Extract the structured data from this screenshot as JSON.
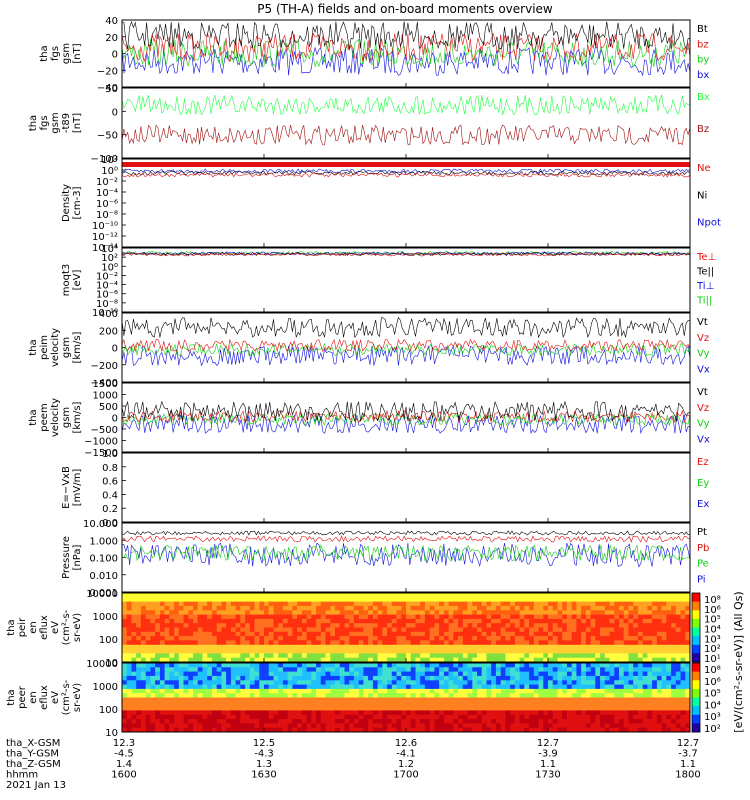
{
  "title": "P5 (TH-A) fields and on-board moments overview",
  "colors": {
    "black": "#000000",
    "red": "#e01010",
    "green": "#10d010",
    "blue": "#1010e0",
    "darkred": "#a01010",
    "lime": "#20ff40"
  },
  "colorbar": {
    "label": "[eV/(cm²-s-sr-eV)] (All Qs)",
    "panel1_ticks": [
      "10⁸",
      "10⁶",
      "10⁵",
      "10⁴",
      "10³",
      "10²",
      "10¹"
    ],
    "panel2_ticks": [
      "10⁸",
      "10⁶",
      "10⁵",
      "10⁴",
      "10³",
      "10²"
    ]
  },
  "ephemeris": {
    "rows": [
      {
        "label": "tha_X-GSM",
        "values": [
          "12.3",
          "12.5",
          "12.6",
          "12.7",
          "12.7"
        ]
      },
      {
        "label": "tha_Y-GSM",
        "values": [
          "-4.5",
          "-4.3",
          "-4.1",
          "-3.9",
          "-3.7"
        ]
      },
      {
        "label": "tha_Z-GSM",
        "values": [
          "1.4",
          "1.3",
          "1.2",
          "1.1",
          "1.1"
        ]
      },
      {
        "label": "hhmm",
        "values": [
          "1600",
          "1630",
          "1700",
          "1730",
          "1800"
        ]
      }
    ],
    "date": "2021 Jan 13"
  },
  "chart_data": [
    {
      "type": "line",
      "ylabel": [
        "tha",
        "fgs",
        "gsm",
        "[nT]"
      ],
      "ylim": [
        -40,
        40
      ],
      "ticks": [
        "40",
        "20",
        "0",
        "−20",
        "−40"
      ],
      "legend": [
        {
          "name": "Bt",
          "color": "black"
        },
        {
          "name": "bz",
          "color": "red"
        },
        {
          "name": "by",
          "color": "green"
        },
        {
          "name": "bx",
          "color": "blue"
        }
      ]
    },
    {
      "type": "line",
      "ylabel": [
        "tha",
        "fgs",
        "gsm",
        "-t89",
        "[nT]"
      ],
      "ylim": [
        -120,
        50
      ],
      "ticks": [
        "50",
        "0",
        "−50",
        "−100"
      ],
      "legend": [
        {
          "name": "Bx",
          "color": "lime"
        },
        {
          "name": "Bz",
          "color": "darkred"
        }
      ]
    },
    {
      "type": "line",
      "ylabel": [
        "Density",
        "[cm-3]"
      ],
      "ylim": [
        -16,
        4
      ],
      "log": true,
      "ticks": [
        "10²",
        "10⁰",
        "10⁻²",
        "10⁻⁴",
        "10⁻⁶",
        "10⁻⁸",
        "10⁻¹⁰",
        "10⁻¹²",
        "10⁻¹⁴"
      ],
      "legend": [
        {
          "name": "Ne",
          "color": "red"
        },
        {
          "name": "Ni",
          "color": "black"
        },
        {
          "name": "Npot",
          "color": "blue"
        }
      ]
    },
    {
      "type": "line",
      "ylabel": [
        "moqt3",
        "[eV]"
      ],
      "ylim": [
        -12,
        4
      ],
      "log": true,
      "ticks": [
        "10⁴",
        "10²",
        "10⁰",
        "10⁻²",
        "10⁻⁴",
        "10⁻⁶",
        "10⁻⁸",
        "10⁻¹⁰"
      ],
      "legend": [
        {
          "name": "Te⊥",
          "color": "red"
        },
        {
          "name": "Te||",
          "color": "black"
        },
        {
          "name": "Ti⊥",
          "color": "blue"
        },
        {
          "name": "Ti||",
          "color": "green"
        }
      ]
    },
    {
      "type": "line",
      "ylabel": [
        "tha",
        "peim",
        "velocity",
        "gsm",
        "[km/s]"
      ],
      "ylim": [
        -400,
        400
      ],
      "ticks": [
        "400",
        "200",
        "0",
        "−200",
        "−400"
      ],
      "legend": [
        {
          "name": "Vt",
          "color": "black"
        },
        {
          "name": "Vz",
          "color": "red"
        },
        {
          "name": "Vy",
          "color": "green"
        },
        {
          "name": "Vx",
          "color": "blue"
        }
      ]
    },
    {
      "type": "line",
      "ylabel": [
        "tha",
        "peem",
        "velocity",
        "gsm",
        "[km/s]"
      ],
      "ylim": [
        -1500,
        1500
      ],
      "ticks": [
        "1500",
        "1000",
        "500",
        "0",
        "−500",
        "−1000",
        "−1500"
      ],
      "legend": [
        {
          "name": "Vt",
          "color": "black"
        },
        {
          "name": "Vz",
          "color": "red"
        },
        {
          "name": "Vy",
          "color": "green"
        },
        {
          "name": "Vx",
          "color": "blue"
        }
      ]
    },
    {
      "type": "line",
      "ylabel": [
        "E=−VxB",
        "[mV/m]"
      ],
      "ylim": [
        0,
        1
      ],
      "ticks": [
        "1.0",
        "0.8",
        "0.6",
        "0.4",
        "0.2",
        "0.0"
      ],
      "legend": [
        {
          "name": "Ez",
          "color": "red"
        },
        {
          "name": "Ey",
          "color": "green"
        },
        {
          "name": "Ex",
          "color": "blue"
        }
      ]
    },
    {
      "type": "line",
      "ylabel": [
        "Pressure",
        "[nPa]"
      ],
      "ylim": [
        -3,
        1
      ],
      "log": true,
      "ticks": [
        "10.000",
        "1.000",
        "0.100",
        "0.010",
        "0.001"
      ],
      "legend": [
        {
          "name": "Pt",
          "color": "black"
        },
        {
          "name": "Pb",
          "color": "red"
        },
        {
          "name": "Pe",
          "color": "green"
        },
        {
          "name": "Pi",
          "color": "blue"
        }
      ]
    },
    {
      "type": "heatmap",
      "ylabel": [
        "tha",
        "peir",
        "en",
        "eflux",
        "eV",
        "(cm²-s-",
        "sr-eV)"
      ],
      "ylim": [
        5,
        20000
      ],
      "log": true,
      "ticks": [
        "10000",
        "1000",
        "100",
        "10"
      ]
    },
    {
      "type": "heatmap",
      "ylabel": [
        "tha",
        "peer",
        "en",
        "eflux",
        "eV",
        "(cm²-s-",
        "sr-eV)"
      ],
      "ylim": [
        5,
        20000
      ],
      "log": true,
      "ticks": [
        "10000",
        "1000",
        "100",
        "10"
      ]
    }
  ]
}
